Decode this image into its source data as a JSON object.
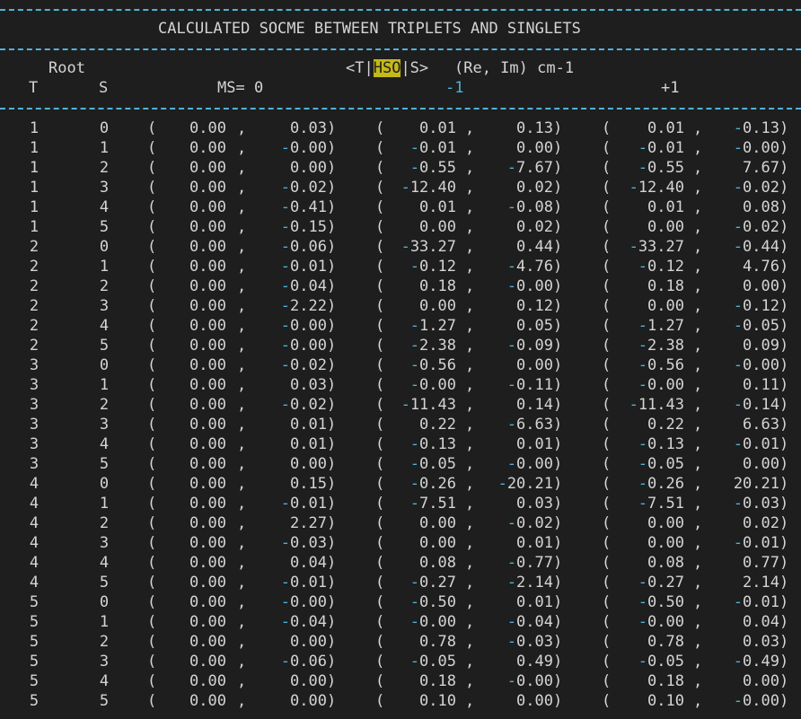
{
  "header": {
    "title": "CALCULATED SOCME BETWEEN TRIPLETS AND SINGLETS",
    "root_label": "Root",
    "bra": "<T|",
    "op": "HSO",
    "ket": "|S>",
    "units": "(Re, Im) cm-1",
    "col_T": "T",
    "col_S": "S",
    "ms0": "MS= 0",
    "msm1": "-1",
    "msp1": "+1"
  },
  "colors": {
    "background": "#1e1e1e",
    "text": "#d4d4d4",
    "accent": "#4fb3d9",
    "highlight": "#c4b81a"
  },
  "rows": [
    [
      "1",
      "0",
      "0.00",
      "0.03",
      "0.01",
      "0.13",
      "0.01",
      "-0.13"
    ],
    [
      "1",
      "1",
      "0.00",
      "-0.00",
      "-0.01",
      "0.00",
      "-0.01",
      "-0.00"
    ],
    [
      "1",
      "2",
      "0.00",
      "0.00",
      "-0.55",
      "-7.67",
      "-0.55",
      "7.67"
    ],
    [
      "1",
      "3",
      "0.00",
      "-0.02",
      "-12.40",
      "0.02",
      "-12.40",
      "-0.02"
    ],
    [
      "1",
      "4",
      "0.00",
      "-0.41",
      "0.01",
      "-0.08",
      "0.01",
      "0.08"
    ],
    [
      "1",
      "5",
      "0.00",
      "-0.15",
      "0.00",
      "0.02",
      "0.00",
      "-0.02"
    ],
    [
      "2",
      "0",
      "0.00",
      "-0.06",
      "-33.27",
      "0.44",
      "-33.27",
      "-0.44"
    ],
    [
      "2",
      "1",
      "0.00",
      "-0.01",
      "-0.12",
      "-4.76",
      "-0.12",
      "4.76"
    ],
    [
      "2",
      "2",
      "0.00",
      "-0.04",
      "0.18",
      "-0.00",
      "0.18",
      "0.00"
    ],
    [
      "2",
      "3",
      "0.00",
      "-2.22",
      "0.00",
      "0.12",
      "0.00",
      "-0.12"
    ],
    [
      "2",
      "4",
      "0.00",
      "-0.00",
      "-1.27",
      "0.05",
      "-1.27",
      "-0.05"
    ],
    [
      "2",
      "5",
      "0.00",
      "-0.00",
      "-2.38",
      "-0.09",
      "-2.38",
      "0.09"
    ],
    [
      "3",
      "0",
      "0.00",
      "-0.02",
      "-0.56",
      "0.00",
      "-0.56",
      "-0.00"
    ],
    [
      "3",
      "1",
      "0.00",
      "0.03",
      "-0.00",
      "-0.11",
      "-0.00",
      "0.11"
    ],
    [
      "3",
      "2",
      "0.00",
      "-0.02",
      "-11.43",
      "0.14",
      "-11.43",
      "-0.14"
    ],
    [
      "3",
      "3",
      "0.00",
      "0.01",
      "0.22",
      "-6.63",
      "0.22",
      "6.63"
    ],
    [
      "3",
      "4",
      "0.00",
      "0.01",
      "-0.13",
      "0.01",
      "-0.13",
      "-0.01"
    ],
    [
      "3",
      "5",
      "0.00",
      "0.00",
      "-0.05",
      "-0.00",
      "-0.05",
      "0.00"
    ],
    [
      "4",
      "0",
      "0.00",
      "0.15",
      "-0.26",
      "-20.21",
      "-0.26",
      "20.21"
    ],
    [
      "4",
      "1",
      "0.00",
      "-0.01",
      "-7.51",
      "0.03",
      "-7.51",
      "-0.03"
    ],
    [
      "4",
      "2",
      "0.00",
      "2.27",
      "0.00",
      "-0.02",
      "0.00",
      "0.02"
    ],
    [
      "4",
      "3",
      "0.00",
      "-0.03",
      "0.00",
      "0.01",
      "0.00",
      "-0.01"
    ],
    [
      "4",
      "4",
      "0.00",
      "0.04",
      "0.08",
      "-0.77",
      "0.08",
      "0.77"
    ],
    [
      "4",
      "5",
      "0.00",
      "-0.01",
      "-0.27",
      "-2.14",
      "-0.27",
      "2.14"
    ],
    [
      "5",
      "0",
      "0.00",
      "-0.00",
      "-0.50",
      "0.01",
      "-0.50",
      "-0.01"
    ],
    [
      "5",
      "1",
      "0.00",
      "-0.04",
      "-0.00",
      "-0.04",
      "-0.00",
      "0.04"
    ],
    [
      "5",
      "2",
      "0.00",
      "0.00",
      "0.78",
      "-0.03",
      "0.78",
      "0.03"
    ],
    [
      "5",
      "3",
      "0.00",
      "-0.06",
      "-0.05",
      "0.49",
      "-0.05",
      "-0.49"
    ],
    [
      "5",
      "4",
      "0.00",
      "0.00",
      "0.18",
      "-0.00",
      "0.18",
      "0.00"
    ],
    [
      "5",
      "5",
      "0.00",
      "0.00",
      "0.10",
      "0.00",
      "0.10",
      "-0.00"
    ]
  ]
}
